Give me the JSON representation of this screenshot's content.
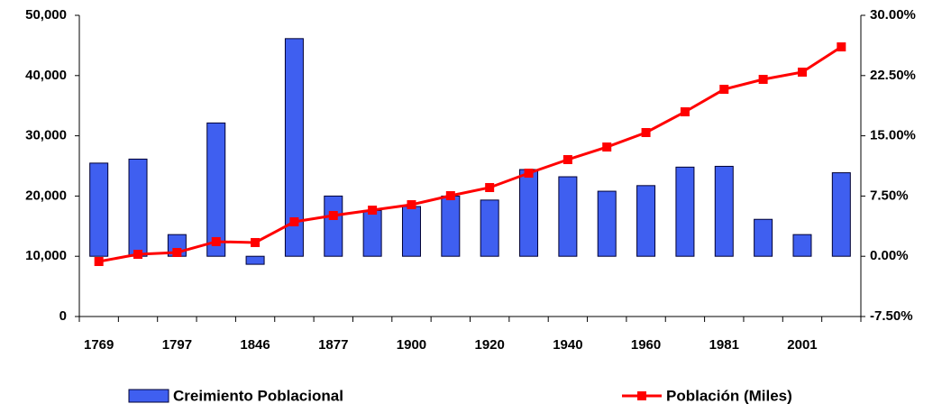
{
  "chart_data": {
    "type": "bar-line",
    "categories": [
      "1769",
      null,
      "1797",
      null,
      "1846",
      null,
      "1877",
      null,
      "1900",
      null,
      "1920",
      null,
      "1940",
      null,
      "1960",
      null,
      "1981",
      null,
      "2001",
      null
    ],
    "series": [
      {
        "name": "Creimiento Poblacional",
        "type": "bar",
        "axis": "y2",
        "color": "#3f5ff0",
        "values": [
          11.6,
          12.1,
          2.7,
          16.6,
          -1.0,
          27.1,
          7.5,
          5.7,
          6.2,
          7.5,
          7.0,
          10.8,
          9.9,
          8.1,
          8.8,
          11.1,
          11.2,
          4.6,
          2.7,
          10.4
        ]
      },
      {
        "name": "Población (Miles)",
        "type": "line",
        "axis": "y",
        "color": "#ff0000",
        "values": [
          9130,
          10330,
          10630,
          12430,
          12280,
          15720,
          16770,
          17660,
          18560,
          20060,
          21410,
          23800,
          26050,
          28140,
          30540,
          33980,
          37720,
          39370,
          40570,
          44760
        ]
      }
    ],
    "ylim": [
      0,
      50000
    ],
    "yticks": [
      0,
      {
        "value": 10000,
        "label": "10,000"
      },
      {
        "value": 20000,
        "label": "20,000"
      },
      {
        "value": 30000,
        "label": "30,000"
      },
      {
        "value": 40000,
        "label": "40,000"
      },
      {
        "value": 50000,
        "label": "50,000"
      }
    ],
    "y2lim": [
      -7.5,
      30
    ],
    "y2ticks": [
      {
        "value": -7.5,
        "label": "-7.50%"
      },
      {
        "value": 0,
        "label": "0.00%"
      },
      {
        "value": 7.5,
        "label": "7.50%"
      },
      {
        "value": 15,
        "label": "15.00%"
      },
      {
        "value": 22.5,
        "label": "22.50%"
      },
      {
        "value": 30,
        "label": "30.00%"
      }
    ],
    "grid": false,
    "legend": "bottom"
  }
}
